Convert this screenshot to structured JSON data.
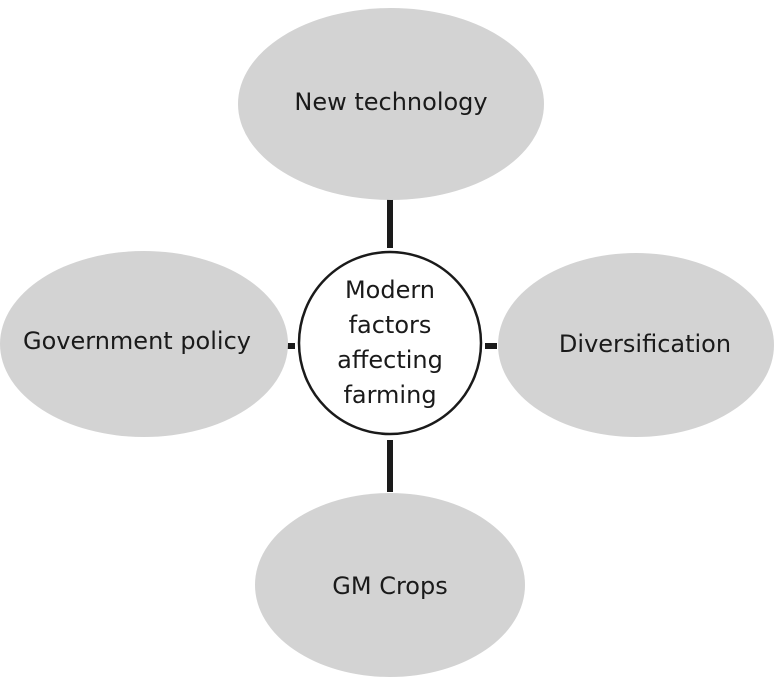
{
  "center": {
    "label": [
      "Modern",
      "factors",
      "affecting",
      "farming"
    ]
  },
  "nodes": [
    {
      "label": "New technology"
    },
    {
      "label": "Diversification"
    },
    {
      "label": "GM Crops"
    },
    {
      "label": "Government policy"
    }
  ]
}
